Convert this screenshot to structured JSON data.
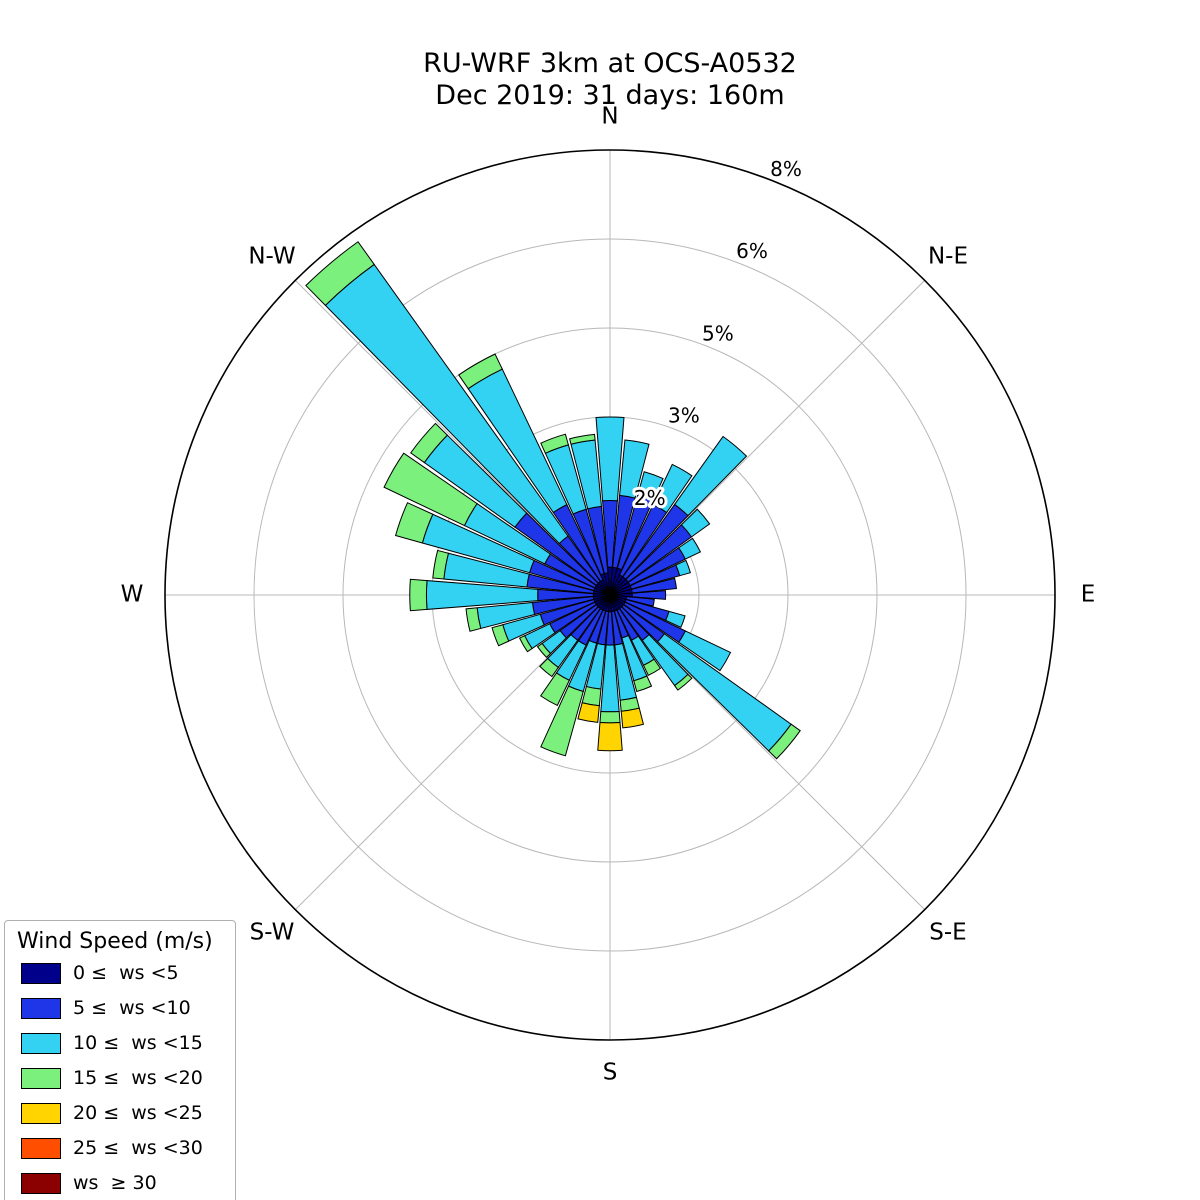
{
  "title": {
    "line1": "RU-WRF 3km at OCS-A0532",
    "line2": "Dec 2019: 31 days: 160m"
  },
  "legend": {
    "title": "Wind Speed (m/s)",
    "entries": [
      {
        "label": "0 ≤  ws <5",
        "color": "#00008B"
      },
      {
        "label": "5 ≤  ws <10",
        "color": "#1F35E8"
      },
      {
        "label": "10 ≤  ws <15",
        "color": "#33D2F2"
      },
      {
        "label": "15 ≤  ws <20",
        "color": "#7CF07C"
      },
      {
        "label": "20 ≤  ws <25",
        "color": "#FFD400"
      },
      {
        "label": "25 ≤  ws <30",
        "color": "#FF4E00"
      },
      {
        "label": "ws  ≥ 30",
        "color": "#8B0000"
      }
    ]
  },
  "chart_data": {
    "type": "bar",
    "subtype": "windrose-stacked-polar",
    "units": "percent-frequency",
    "direction_step_deg": 10,
    "compass_labels": [
      "N",
      "N-E",
      "E",
      "S-E",
      "S",
      "S-W",
      "W",
      "N-W"
    ],
    "ring_percents": [
      1.6,
      3.2,
      4.8,
      6.4,
      8.0
    ],
    "ring_labels": [
      "2%",
      "3%",
      "5%",
      "6%",
      "8%"
    ],
    "rmax_percent": 8.0,
    "grid": true,
    "legend_position": "bottom-left",
    "directions_deg": [
      0,
      10,
      20,
      30,
      40,
      50,
      60,
      70,
      80,
      90,
      100,
      110,
      120,
      130,
      140,
      150,
      160,
      170,
      180,
      190,
      200,
      210,
      220,
      230,
      240,
      250,
      260,
      270,
      280,
      290,
      300,
      310,
      320,
      330,
      340,
      350
    ],
    "series": [
      {
        "name": "0 ≤ ws <5",
        "color": "#00008B",
        "values": [
          0.5,
          0.5,
          0.5,
          0.4,
          0.4,
          0.4,
          0.4,
          0.4,
          0.4,
          0.4,
          0.3,
          0.3,
          0.3,
          0.3,
          0.3,
          0.3,
          0.3,
          0.3,
          0.3,
          0.3,
          0.3,
          0.3,
          0.3,
          0.3,
          0.3,
          0.3,
          0.3,
          0.3,
          0.3,
          0.3,
          0.3,
          0.3,
          0.3,
          0.3,
          0.4,
          0.4
        ]
      },
      {
        "name": "5 ≤ ws <10",
        "color": "#1F35E8",
        "values": [
          1.2,
          1.3,
          1.4,
          1.4,
          1.6,
          1.4,
          1.1,
          0.9,
          0.8,
          0.6,
          0.5,
          0.8,
          1.2,
          0.9,
          0.7,
          0.6,
          0.5,
          0.6,
          0.6,
          0.6,
          0.6,
          0.7,
          0.7,
          0.8,
          0.9,
          1.0,
          1.1,
          1.0,
          1.2,
          1.2,
          1.0,
          1.8,
          1.0,
          1.5,
          1.2,
          1.2
        ]
      },
      {
        "name": "10 ≤ ws <15",
        "color": "#33D2F2",
        "values": [
          1.5,
          1.0,
          0.4,
          0.8,
          1.5,
          0.4,
          0.3,
          0.2,
          0.0,
          0.0,
          0.0,
          0.3,
          0.9,
          2.8,
          1.0,
          0.5,
          0.8,
          1.0,
          1.2,
          0.8,
          0.9,
          0.7,
          0.6,
          0.4,
          0.5,
          0.7,
          1.0,
          2.0,
          1.5,
          2.0,
          1.6,
          2.0,
          6.0,
          2.7,
          1.2,
          1.2
        ]
      },
      {
        "name": "15 ≤ ws <20",
        "color": "#7CF07C",
        "values": [
          0.0,
          0.0,
          0.0,
          0.0,
          0.0,
          0.0,
          0.0,
          0.0,
          0.0,
          0.0,
          0.0,
          0.0,
          0.0,
          0.2,
          0.1,
          0.2,
          0.2,
          0.2,
          0.2,
          0.3,
          1.2,
          0.5,
          0.2,
          0.1,
          0.1,
          0.2,
          0.2,
          0.3,
          0.2,
          0.5,
          1.6,
          0.3,
          0.5,
          0.3,
          0.2,
          0.1
        ]
      },
      {
        "name": "20 ≤ ws <25",
        "color": "#FFD400",
        "values": [
          0.0,
          0.0,
          0.0,
          0.0,
          0.0,
          0.0,
          0.0,
          0.0,
          0.0,
          0.0,
          0.0,
          0.0,
          0.0,
          0.0,
          0.0,
          0.0,
          0.0,
          0.3,
          0.5,
          0.3,
          0.0,
          0.0,
          0.0,
          0.0,
          0.0,
          0.0,
          0.0,
          0.0,
          0.0,
          0.0,
          0.0,
          0.0,
          0.0,
          0.0,
          0.0,
          0.0
        ]
      },
      {
        "name": "25 ≤ ws <30",
        "color": "#FF4E00",
        "values": [
          0.0,
          0.0,
          0.0,
          0.0,
          0.0,
          0.0,
          0.0,
          0.0,
          0.0,
          0.0,
          0.0,
          0.0,
          0.0,
          0.0,
          0.0,
          0.0,
          0.0,
          0.0,
          0.0,
          0.0,
          0.0,
          0.0,
          0.0,
          0.0,
          0.0,
          0.0,
          0.0,
          0.0,
          0.0,
          0.0,
          0.0,
          0.0,
          0.0,
          0.0,
          0.0,
          0.0
        ]
      },
      {
        "name": "ws ≥ 30",
        "color": "#8B0000",
        "values": [
          0.0,
          0.0,
          0.0,
          0.0,
          0.0,
          0.0,
          0.0,
          0.0,
          0.0,
          0.0,
          0.0,
          0.0,
          0.0,
          0.0,
          0.0,
          0.0,
          0.0,
          0.0,
          0.0,
          0.0,
          0.0,
          0.0,
          0.0,
          0.0,
          0.0,
          0.0,
          0.0,
          0.0,
          0.0,
          0.0,
          0.0,
          0.0,
          0.0,
          0.0,
          0.0,
          0.0
        ]
      }
    ]
  }
}
